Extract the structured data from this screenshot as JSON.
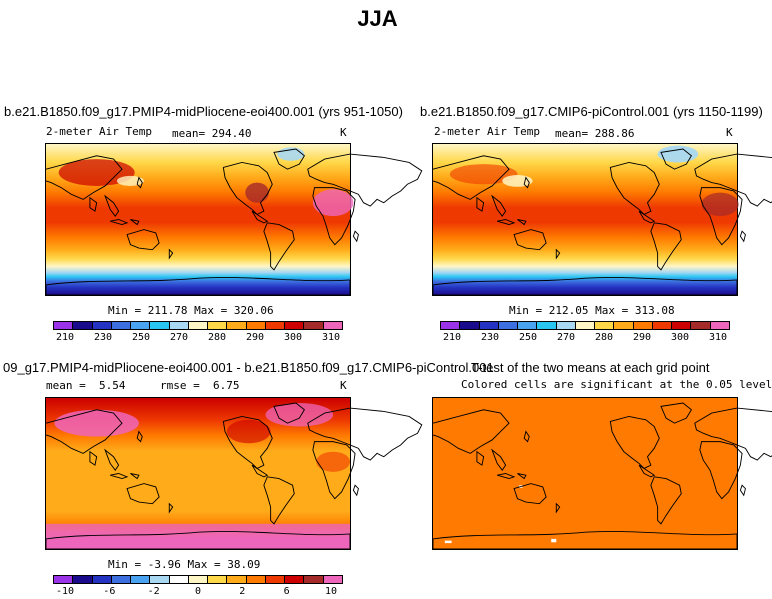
{
  "figure_title": "JJA",
  "panels": {
    "p1": {
      "title": "b.e21.B1850.f09_g17.PMIP4-midPliocene-eoi400.001 (yrs 951-1050)",
      "variable": "2-meter Air Temp",
      "mean_label": "mean=",
      "mean_value": "294.40",
      "units": "K",
      "min_max": "Min = 211.78 Max = 320.06"
    },
    "p2": {
      "title": "b.e21.B1850.f09_g17.CMIP6-piControl.001 (yrs 1150-1199)",
      "variable": "2-meter Air Temp",
      "mean_label": "mean=",
      "mean_value": "288.86",
      "units": "K",
      "min_max": "Min = 212.05 Max = 313.08"
    },
    "p3": {
      "title": "09_g17.PMIP4-midPliocene-eoi400.001 - b.e21.B1850.f09_g17.CMIP6-piControl.001",
      "mean_label": "mean =",
      "mean_value": "5.54",
      "rmse_label": "rmse =",
      "rmse_value": "6.75",
      "units": "K",
      "min_max": "Min =  -3.96 Max =  38.09"
    },
    "p4": {
      "title": "T-test of the two means at each grid point",
      "subtitle": "Colored cells are significant at the 0.05 level"
    }
  },
  "colorbar_temp": {
    "ticks": [
      "210",
      "230",
      "250",
      "270",
      "280",
      "290",
      "300",
      "310"
    ],
    "colors": [
      "#9b33e8",
      "#1a0b8c",
      "#2433c2",
      "#3d6fe0",
      "#4aa3f0",
      "#29c6f2",
      "#a9d8f2",
      "#fff6c6",
      "#ffd84a",
      "#ffab1a",
      "#ff7a00",
      "#ee3a00",
      "#cc0000",
      "#a52a2a",
      "#ee66bb"
    ]
  },
  "colorbar_diff": {
    "ticks": [
      "-10",
      "-6",
      "-2",
      "0",
      "2",
      "6",
      "10"
    ],
    "colors": [
      "#9b33e8",
      "#1a0b8c",
      "#2433c2",
      "#3d6fe0",
      "#4aa3f0",
      "#a9d8f2",
      "#ffffff",
      "#fff6c6",
      "#ffd84a",
      "#ffab1a",
      "#ff7a00",
      "#ee3a00",
      "#cc0000",
      "#a52a2a",
      "#ee66bb"
    ]
  }
}
